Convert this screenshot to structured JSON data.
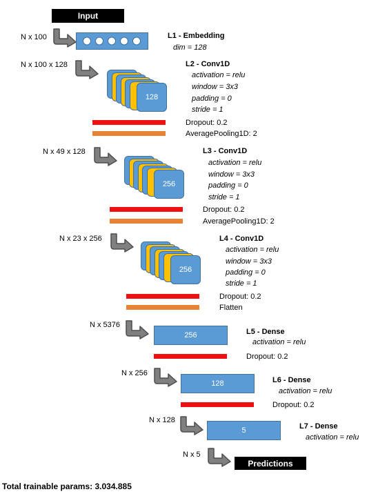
{
  "input_label": "Input",
  "predictions_label": "Predictions",
  "total_params": "Total trainable params: 3.034.885",
  "colors": {
    "blue": "#5b9bd5",
    "yellow": "#ffc000",
    "red": "#ee1111",
    "orange": "#e88235",
    "gray": "#808080"
  },
  "l1": {
    "title": "L1 - Embedding",
    "params": [
      "dim = 128"
    ],
    "in_shape": "N x 100"
  },
  "l2": {
    "title": "L2 - Conv1D",
    "params": [
      "activation = relu",
      "window = 3x3",
      "padding = 0",
      "stride = 1"
    ],
    "in_shape": "N x 100 x 128",
    "filters": "128",
    "dropout": "Dropout: 0.2",
    "pool": "AveragePooling1D: 2"
  },
  "l3": {
    "title": "L3 - Conv1D",
    "params": [
      "activation = relu",
      "window = 3x3",
      "padding = 0",
      "stride = 1"
    ],
    "in_shape": "N x 49 x 128",
    "filters": "256",
    "dropout": "Dropout: 0.2",
    "pool": "AveragePooling1D: 2"
  },
  "l4": {
    "title": "L4 - Conv1D",
    "params": [
      "activation = relu",
      "window = 3x3",
      "padding = 0",
      "stride = 1"
    ],
    "in_shape": "N x 23 x 256",
    "filters": "256",
    "dropout": "Dropout: 0.2",
    "flatten": "Flatten"
  },
  "l5": {
    "title": "L5 - Dense",
    "params": [
      "activation = relu"
    ],
    "in_shape": "N x 5376",
    "units": "256",
    "dropout": "Dropout: 0.2"
  },
  "l6": {
    "title": "L6 - Dense",
    "params": [
      "activation = relu"
    ],
    "in_shape": "N x 256",
    "units": "128",
    "dropout": "Dropout: 0.2"
  },
  "l7": {
    "title": "L7 - Dense",
    "params": [
      "activation = relu"
    ],
    "in_shape": "N x 128",
    "units": "5"
  },
  "out_shape": "N x 5"
}
